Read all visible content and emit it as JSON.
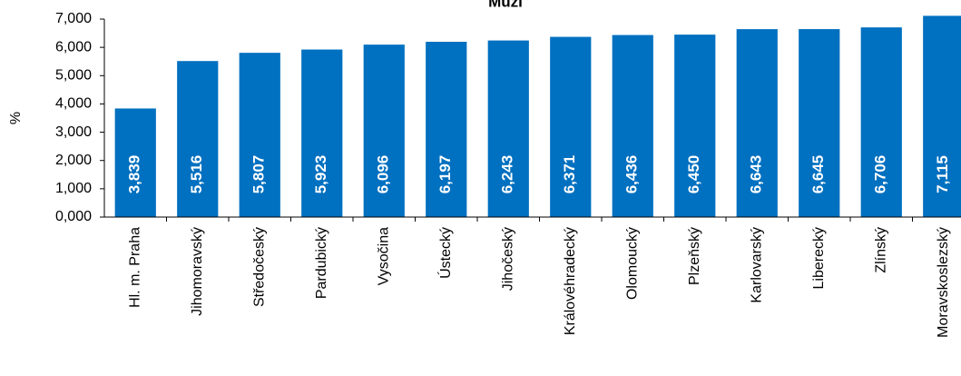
{
  "chart_data": {
    "type": "bar",
    "title": "Muži",
    "ylabel": "%",
    "categories": [
      "Hl. m. Praha",
      "Jihomoravský",
      "Středočeský",
      "Pardubický",
      "Vysočina",
      "Ústecký",
      "Jihočeský",
      "Královéhradecký",
      "Olomoucký",
      "Plzeňský",
      "Karlovarský",
      "Liberecký",
      "Zlínský",
      "Moravskoslezský"
    ],
    "values": [
      3.839,
      5.516,
      5.807,
      5.923,
      6.096,
      6.197,
      6.243,
      6.371,
      6.436,
      6.45,
      6.643,
      6.645,
      6.706,
      7.115
    ],
    "value_labels": [
      "3,839",
      "5,516",
      "5,807",
      "5,923",
      "6,096",
      "6,197",
      "6,243",
      "6,371",
      "6,436",
      "6,450",
      "6,643",
      "6,645",
      "6,706",
      "7,115"
    ],
    "color": "#0070c0",
    "ylim": [
      0,
      7
    ],
    "yticks": [
      {
        "value": 0,
        "label": "0,000"
      },
      {
        "value": 1,
        "label": "1,000"
      },
      {
        "value": 2,
        "label": "2,000"
      },
      {
        "value": 3,
        "label": "3,000"
      },
      {
        "value": 4,
        "label": "4,000"
      },
      {
        "value": 5,
        "label": "5,000"
      },
      {
        "value": 6,
        "label": "6,000"
      },
      {
        "value": 7,
        "label": "7,000"
      }
    ]
  }
}
